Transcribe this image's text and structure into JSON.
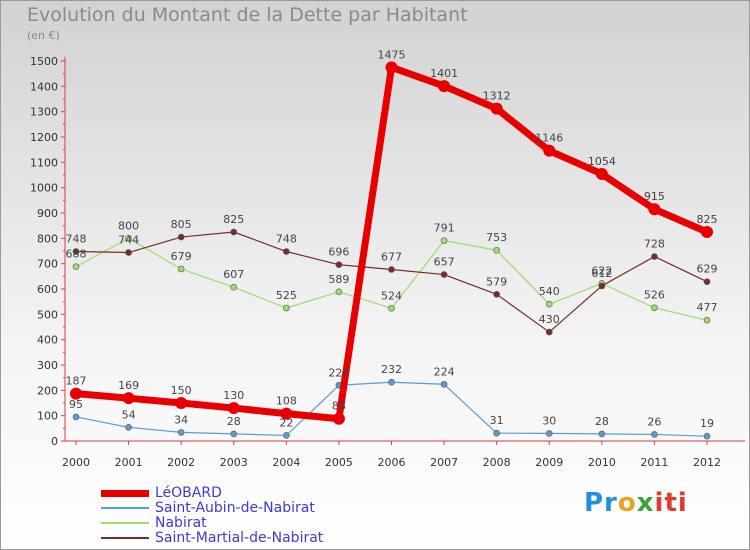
{
  "chart_data": {
    "type": "line",
    "title": "Evolution du Montant de la Dette par Habitant",
    "subtitle": "(en €)",
    "xlabel": "",
    "ylabel": "",
    "x": [
      "2000",
      "2001",
      "2002",
      "2003",
      "2004",
      "2005",
      "2006",
      "2007",
      "2008",
      "2009",
      "2010",
      "2011",
      "2012"
    ],
    "ylim": [
      0,
      1500
    ],
    "yticks": [
      0,
      100,
      200,
      300,
      400,
      500,
      600,
      700,
      800,
      900,
      1000,
      1100,
      1200,
      1300,
      1400,
      1500
    ],
    "grid": false,
    "legend_position": "bottom-left",
    "series": [
      {
        "name": "LéOBARD",
        "color": "#e80000",
        "values": [
          187,
          169,
          150,
          130,
          108,
          88,
          1475,
          1401,
          1312,
          1146,
          1054,
          915,
          825
        ]
      },
      {
        "name": "Saint-Aubin-de-Nabirat",
        "color": "#5b9bd5",
        "values": [
          95,
          54,
          34,
          28,
          22,
          220,
          232,
          224,
          31,
          30,
          28,
          26,
          19
        ]
      },
      {
        "name": "Nabirat",
        "color": "#98e06a",
        "values": [
          688,
          800,
          679,
          607,
          525,
          589,
          524,
          791,
          753,
          540,
          622,
          526,
          477
        ]
      },
      {
        "name": "Saint-Martial-de-Nabirat",
        "color": "#7a2a2a",
        "values": [
          748,
          744,
          805,
          825,
          748,
          696,
          677,
          657,
          579,
          430,
          612,
          728,
          629
        ]
      }
    ]
  },
  "logo": {
    "p1": "Pr",
    "p2": "o",
    "p3": "x",
    "p4": "iti"
  }
}
